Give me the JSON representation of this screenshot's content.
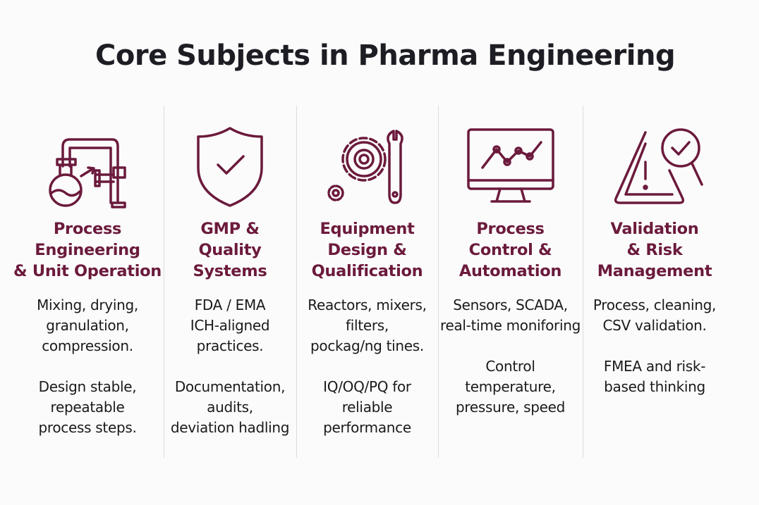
{
  "title": "Core Subjects in Pharma Engineering",
  "accent_color": "#6b1a3c",
  "columns": [
    {
      "icon": "pipes-flask-icon",
      "heading": [
        "Process",
        "Engineering",
        "& Unit Operation"
      ],
      "p1": [
        "Mixing, drying,",
        "granulation,",
        "compression."
      ],
      "p2": [
        "Design stable,",
        "repeatable",
        "process steps."
      ]
    },
    {
      "icon": "shield-check-icon",
      "heading": [
        "GMP &",
        "Quality",
        "Systems"
      ],
      "p1": [
        "FDA / EMA",
        "ICH-aligned",
        "practices."
      ],
      "p2": [
        "Documentation,",
        "audits,",
        "deviation hadling"
      ]
    },
    {
      "icon": "gear-wrench-icon",
      "heading": [
        "Equipment",
        "Design &",
        "Qualification"
      ],
      "p1": [
        "Reactors, mixers,",
        "filters,",
        "pockag/ng tines."
      ],
      "p2": [
        "IQ/OQ/PQ for",
        "reliable",
        "performance"
      ]
    },
    {
      "icon": "monitor-chart-icon",
      "heading": [
        "Process",
        "Control &",
        "Automation"
      ],
      "p1": [
        "Sensors, SCADA,",
        "real-time moniforing"
      ],
      "p2": [
        "Control",
        "temperature,",
        "pressure, speed"
      ]
    },
    {
      "icon": "warning-magnifier-icon",
      "heading": [
        "Validation",
        "& Risk",
        "Management"
      ],
      "p1": [
        "Process, cleaning,",
        "CSV validation."
      ],
      "p2": [
        "FMEA and risk-",
        "based thinking"
      ]
    }
  ]
}
